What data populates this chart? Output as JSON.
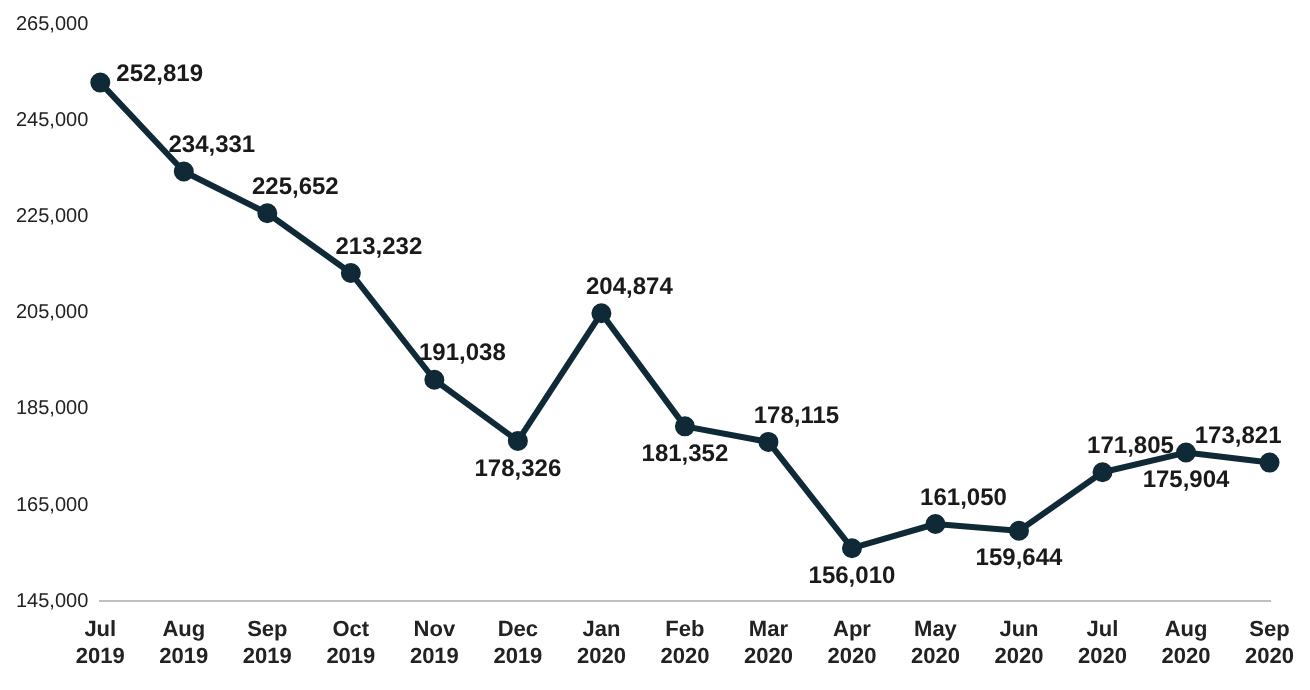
{
  "chart_data": {
    "type": "line",
    "categories": [
      "Jul 2019",
      "Aug 2019",
      "Sep 2019",
      "Oct 2019",
      "Nov 2019",
      "Dec 2019",
      "Jan 2020",
      "Feb 2020",
      "Mar 2020",
      "Apr 2020",
      "May 2020",
      "Jun 2020",
      "Jul 2020",
      "Aug 2020",
      "Sep 2020"
    ],
    "series": [
      {
        "color": "#0f2a36",
        "values": [
          252819,
          234331,
          225652,
          213232,
          191038,
          178326,
          204874,
          181352,
          178115,
          156010,
          161050,
          159644,
          171805,
          175904,
          173821
        ],
        "value_labels": [
          "252,819",
          "234,331",
          "225,652",
          "213,232",
          "191,038",
          "178,326",
          "204,874",
          "181,352",
          "178,115",
          "156,010",
          "161,050",
          "159,644",
          "171,805",
          "175,904",
          "173,821"
        ]
      }
    ],
    "ylim": [
      145000,
      265000
    ],
    "yticks": [
      {
        "value": 145000,
        "label": "145,000"
      },
      {
        "value": 165000,
        "label": "165,000"
      },
      {
        "value": 185000,
        "label": "185,000"
      },
      {
        "value": 205000,
        "label": "205,000"
      },
      {
        "value": 225000,
        "label": "225,000"
      },
      {
        "value": 245000,
        "label": "245,000"
      },
      {
        "value": 265000,
        "label": "265,000"
      }
    ],
    "grid": false,
    "legend": false,
    "marker": "circle",
    "line_style": "solid"
  }
}
